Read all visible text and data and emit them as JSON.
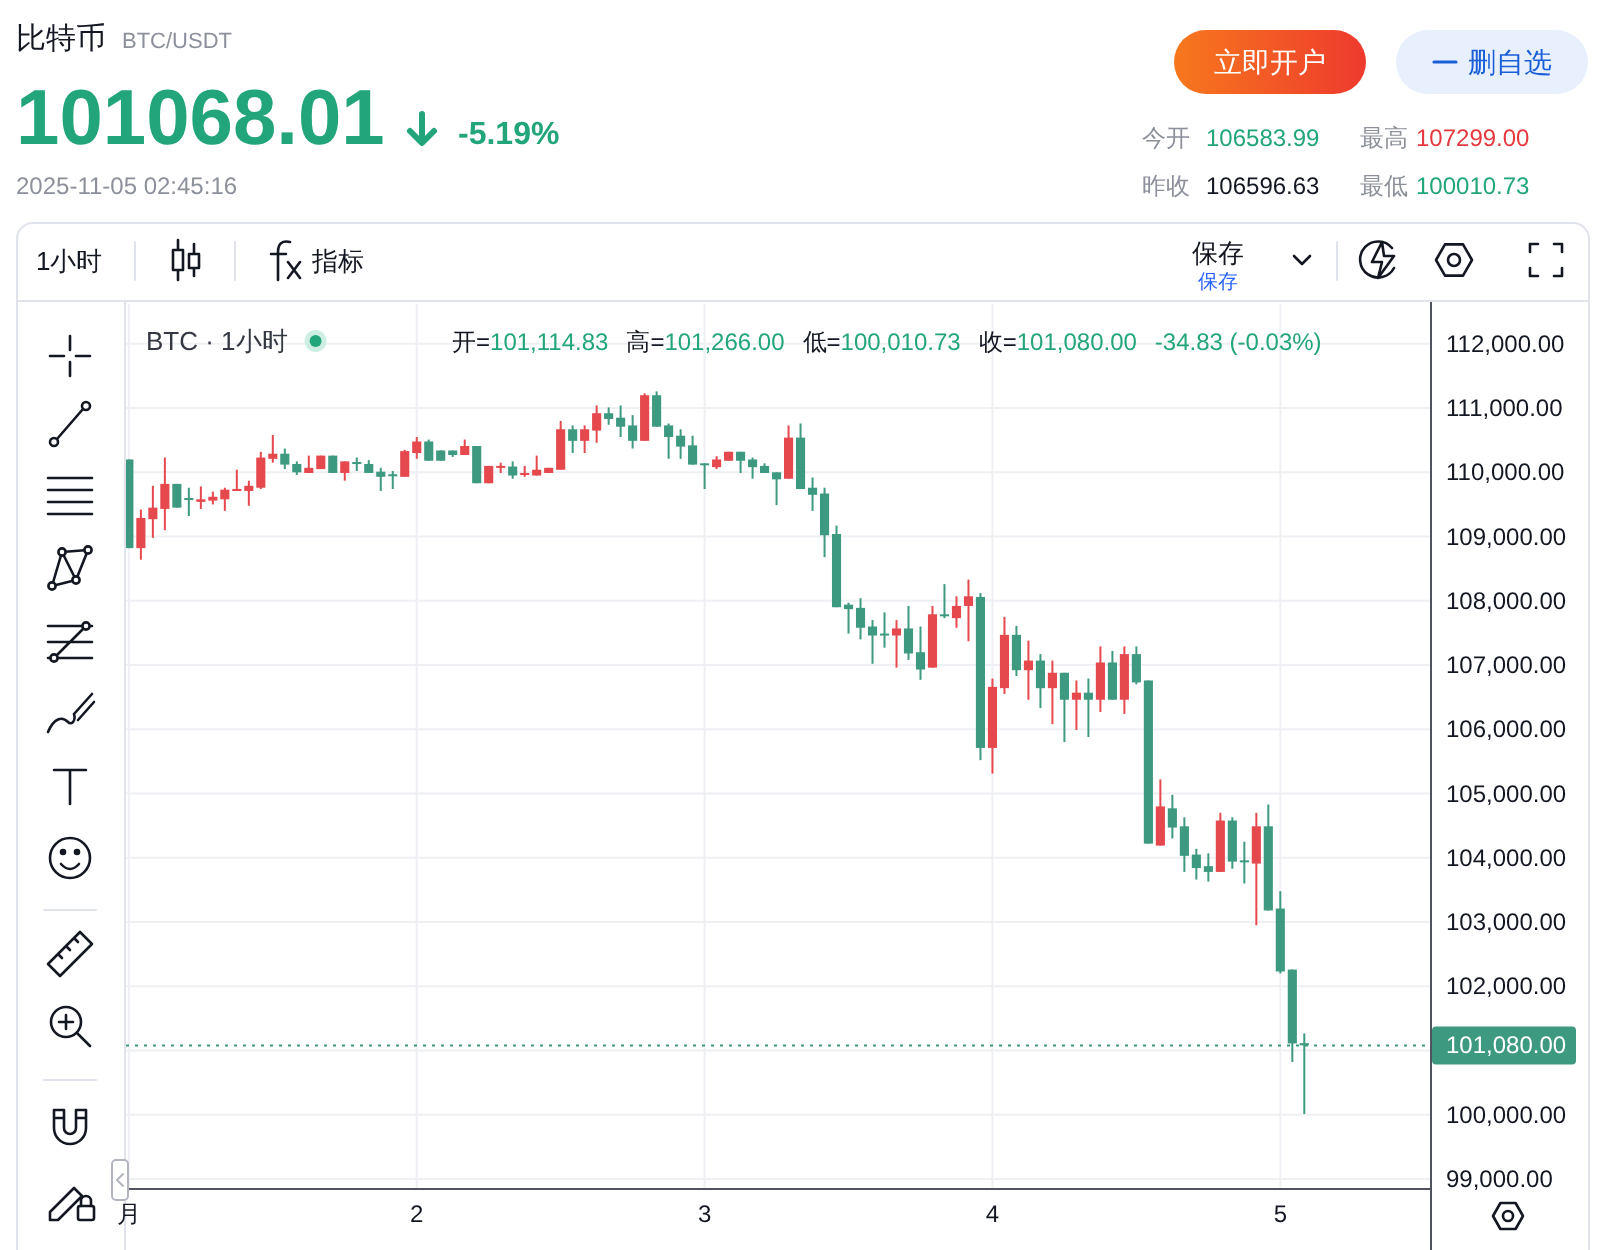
{
  "chart_data": {
    "type": "candlestick",
    "title": "比特币",
    "subtitle": "BTC/USDT",
    "annotations": [
      "101068.01",
      "-5.19%",
      "2025-11-05 02:45:16",
      "今开",
      "106583.99",
      "最高",
      "107299.00",
      "昨收",
      "106596.63",
      "最低",
      "100010.73",
      "立即开户",
      "删自选",
      "1小时",
      "指标",
      "保存",
      "保存",
      "BTC · 1小时",
      "开=101,114.83",
      "高=101,266.00",
      "低=100,010.73",
      "收=101,080.00",
      "-34.83 (-0.03%)"
    ],
    "x": [
      1,
      1.0417,
      1.0833,
      1.125,
      1.1667,
      1.2083,
      1.25,
      1.2917,
      1.3333,
      1.375,
      1.4167,
      1.4583,
      1.5,
      1.5417,
      1.5833,
      1.625,
      1.6667,
      1.7083,
      1.75,
      1.7917,
      1.8333,
      1.875,
      1.9167,
      1.9583,
      2,
      2.0417,
      2.0833,
      2.125,
      2.1667,
      2.2083,
      2.25,
      2.2917,
      2.3333,
      2.375,
      2.4167,
      2.4583,
      2.5,
      2.5417,
      2.5833,
      2.625,
      2.6667,
      2.7083,
      2.75,
      2.7917,
      2.8333,
      2.875,
      2.9167,
      2.9583,
      3,
      3.0417,
      3.0833,
      3.125,
      3.1667,
      3.2083,
      3.25,
      3.2917,
      3.3333,
      3.375,
      3.4167,
      3.4583,
      3.5,
      3.5417,
      3.5833,
      3.625,
      3.6667,
      3.7083,
      3.75,
      3.7917,
      3.8333,
      3.875,
      3.9167,
      3.9583,
      4,
      4.0417,
      4.0833,
      4.125,
      4.1667,
      4.2083,
      4.25,
      4.2917,
      4.3333,
      4.375,
      4.4167,
      4.4583,
      4.5,
      4.5417,
      4.5833,
      4.625,
      4.6667,
      4.7083,
      4.75,
      4.7917,
      4.8333,
      4.875,
      4.9167,
      4.9583,
      5,
      5.0417,
      5.0833
    ],
    "ohlc": [
      [
        110200,
        110200,
        108820,
        108820
      ],
      [
        108820,
        109420,
        108640,
        109290
      ],
      [
        109270,
        109790,
        108980,
        109450
      ],
      [
        109430,
        110230,
        109100,
        109820
      ],
      [
        109820,
        109820,
        109450,
        109450
      ],
      [
        109600,
        109760,
        109320,
        109580
      ],
      [
        109540,
        109780,
        109430,
        109580
      ],
      [
        109560,
        109700,
        109500,
        109620
      ],
      [
        109580,
        109760,
        109400,
        109730
      ],
      [
        109710,
        110040,
        109710,
        109740
      ],
      [
        109710,
        109870,
        109480,
        109790
      ],
      [
        109760,
        110320,
        109740,
        110230
      ],
      [
        110210,
        110580,
        110150,
        110290
      ],
      [
        110290,
        110370,
        110050,
        110120
      ],
      [
        110130,
        110170,
        109960,
        110000
      ],
      [
        109990,
        110260,
        109990,
        110070
      ],
      [
        110050,
        110260,
        110050,
        110260
      ],
      [
        110260,
        110260,
        109990,
        109990
      ],
      [
        109990,
        110170,
        109870,
        110170
      ],
      [
        110160,
        110230,
        110020,
        110130
      ],
      [
        110130,
        110190,
        109990,
        109990
      ],
      [
        110010,
        110070,
        109710,
        109930
      ],
      [
        109970,
        110020,
        109740,
        109950
      ],
      [
        109930,
        110350,
        109930,
        110330
      ],
      [
        110300,
        110550,
        110210,
        110480
      ],
      [
        110480,
        110510,
        110180,
        110180
      ],
      [
        110340,
        110340,
        110180,
        110180
      ],
      [
        110340,
        110340,
        110240,
        110270
      ],
      [
        110270,
        110510,
        110270,
        110410
      ],
      [
        110410,
        110410,
        109830,
        109830
      ],
      [
        109830,
        110100,
        109830,
        110100
      ],
      [
        110080,
        110150,
        109990,
        110100
      ],
      [
        110090,
        110170,
        109900,
        109950
      ],
      [
        109960,
        110100,
        109930,
        109990
      ],
      [
        109950,
        110260,
        109950,
        110040
      ],
      [
        109990,
        110070,
        109990,
        110070
      ],
      [
        110040,
        110800,
        110040,
        110670
      ],
      [
        110670,
        110730,
        110300,
        110490
      ],
      [
        110490,
        110730,
        110300,
        110670
      ],
      [
        110650,
        111040,
        110460,
        110920
      ],
      [
        110920,
        111010,
        110740,
        110830
      ],
      [
        110850,
        111040,
        110550,
        110710
      ],
      [
        110730,
        110890,
        110370,
        110490
      ],
      [
        110490,
        111230,
        110490,
        111200
      ],
      [
        111200,
        111260,
        110710,
        110710
      ],
      [
        110730,
        110760,
        110210,
        110550
      ],
      [
        110570,
        110670,
        110210,
        110400
      ],
      [
        110420,
        110570,
        110120,
        110120
      ],
      [
        110140,
        110140,
        109740,
        110120
      ],
      [
        110080,
        110250,
        110050,
        110200
      ],
      [
        110180,
        110320,
        110180,
        110320
      ],
      [
        110320,
        110320,
        109990,
        110180
      ],
      [
        110200,
        110230,
        109900,
        110080
      ],
      [
        110100,
        110140,
        109990,
        109990
      ],
      [
        110000,
        110000,
        109490,
        109890
      ],
      [
        109900,
        110730,
        109900,
        110540
      ],
      [
        110540,
        110760,
        109740,
        109740
      ],
      [
        109760,
        109920,
        109400,
        109650
      ],
      [
        109670,
        109760,
        108680,
        109020
      ],
      [
        109040,
        109170,
        107900,
        107900
      ],
      [
        107940,
        107970,
        107490,
        107870
      ],
      [
        107890,
        108040,
        107400,
        107580
      ],
      [
        107600,
        107700,
        107020,
        107460
      ],
      [
        107490,
        107820,
        107270,
        107470
      ],
      [
        107460,
        107700,
        106960,
        107570
      ],
      [
        107570,
        107920,
        107080,
        107180
      ],
      [
        107200,
        107600,
        106770,
        106930
      ],
      [
        106960,
        107920,
        106960,
        107790
      ],
      [
        107790,
        108260,
        107730,
        107770
      ],
      [
        107730,
        108070,
        107580,
        107920
      ],
      [
        107920,
        108330,
        107370,
        108070
      ],
      [
        108060,
        108120,
        105520,
        105710
      ],
      [
        105710,
        106790,
        105310,
        106660
      ],
      [
        106640,
        107750,
        106550,
        107470
      ],
      [
        107470,
        107610,
        106830,
        106920
      ],
      [
        106920,
        107380,
        106460,
        107070
      ],
      [
        107070,
        107170,
        106330,
        106640
      ],
      [
        106640,
        107070,
        106080,
        106880
      ],
      [
        106880,
        106880,
        105800,
        106460
      ],
      [
        106460,
        106760,
        105990,
        106570
      ],
      [
        106570,
        106790,
        105880,
        106460
      ],
      [
        106460,
        107290,
        106270,
        107040
      ],
      [
        107040,
        107220,
        106460,
        106460
      ],
      [
        106460,
        107290,
        106240,
        107170
      ],
      [
        107170,
        107290,
        106700,
        106730
      ],
      [
        106760,
        106760,
        104220,
        104220
      ],
      [
        104190,
        105220,
        104190,
        104800
      ],
      [
        104770,
        104980,
        104300,
        104470
      ],
      [
        104490,
        104630,
        103780,
        104030
      ],
      [
        104050,
        104140,
        103660,
        103840
      ],
      [
        103870,
        104070,
        103630,
        103780
      ],
      [
        103780,
        104700,
        103780,
        104580
      ],
      [
        104580,
        104630,
        103830,
        103940
      ],
      [
        103960,
        104250,
        103600,
        103940
      ],
      [
        103910,
        104700,
        102950,
        104490
      ],
      [
        104490,
        104830,
        103180,
        103180
      ],
      [
        103210,
        103480,
        102200,
        102230
      ],
      [
        102260,
        102260,
        100820,
        101110
      ],
      [
        101114.83,
        101266,
        100010.73,
        101080
      ]
    ],
    "colors": [
      "#3d9a80",
      "#e5484d",
      "#e5484d",
      "#e5484d",
      "#3d9a80",
      "#3d9a80",
      "#e5484d",
      "#e5484d",
      "#e5484d",
      "#e5484d",
      "#e5484d",
      "#e5484d",
      "#e5484d",
      "#3d9a80",
      "#3d9a80",
      "#e5484d",
      "#e5484d",
      "#3d9a80",
      "#e5484d",
      "#3d9a80",
      "#3d9a80",
      "#3d9a80",
      "#3d9a80",
      "#e5484d",
      "#e5484d",
      "#3d9a80",
      "#3d9a80",
      "#3d9a80",
      "#e5484d",
      "#3d9a80",
      "#e5484d",
      "#e5484d",
      "#3d9a80",
      "#e5484d",
      "#e5484d",
      "#e5484d",
      "#e5484d",
      "#3d9a80",
      "#e5484d",
      "#e5484d",
      "#3d9a80",
      "#3d9a80",
      "#3d9a80",
      "#e5484d",
      "#3d9a80",
      "#3d9a80",
      "#3d9a80",
      "#3d9a80",
      "#3d9a80",
      "#e5484d",
      "#e5484d",
      "#3d9a80",
      "#3d9a80",
      "#3d9a80",
      "#3d9a80",
      "#e5484d",
      "#3d9a80",
      "#3d9a80",
      "#3d9a80",
      "#3d9a80",
      "#3d9a80",
      "#3d9a80",
      "#3d9a80",
      "#3d9a80",
      "#e5484d",
      "#3d9a80",
      "#3d9a80",
      "#e5484d",
      "#3d9a80",
      "#e5484d",
      "#e5484d",
      "#3d9a80",
      "#e5484d",
      "#e5484d",
      "#3d9a80",
      "#e5484d",
      "#3d9a80",
      "#e5484d",
      "#3d9a80",
      "#e5484d",
      "#3d9a80",
      "#e5484d",
      "#3d9a80",
      "#e5484d",
      "#3d9a80",
      "#3d9a80",
      "#e5484d",
      "#3d9a80",
      "#3d9a80",
      "#3d9a80",
      "#3d9a80",
      "#e5484d",
      "#3d9a80",
      "#3d9a80",
      "#e5484d",
      "#3d9a80",
      "#3d9a80",
      "#3d9a80",
      "#3d9a80"
    ],
    "xlim": [
      0.99,
      5.52
    ],
    "xticks": [
      {
        "value": 1,
        "label": "月"
      },
      2,
      3,
      4,
      5
    ],
    "ylim": [
      98860,
      112620
    ],
    "yticks": [
      {
        "value": 112000,
        "label": "112,000.00"
      },
      {
        "value": 111000,
        "label": "111,000.00"
      },
      {
        "value": 110000,
        "label": "110,000.00"
      },
      {
        "value": 109000,
        "label": "109,000.00"
      },
      {
        "value": 108000,
        "label": "108,000.00"
      },
      {
        "value": 107000,
        "label": "107,000.00"
      },
      {
        "value": 106000,
        "label": "106,000.00"
      },
      {
        "value": 105000,
        "label": "105,000.00"
      },
      {
        "value": 104000,
        "label": "104,000.00"
      },
      {
        "value": 103000,
        "label": "103,000.00"
      },
      {
        "value": 102000,
        "label": "102,000.00"
      },
      {
        "value": 101000,
        "label": null
      },
      {
        "value": 100000,
        "label": "100,000.00"
      },
      {
        "value": 99000,
        "label": "99,000.00"
      }
    ],
    "grid": true,
    "ref_lines": [
      {
        "axis": "y",
        "value": 101080,
        "label": "101,080.00",
        "color": "#3d9a80",
        "line_style": "dotted"
      }
    ]
  }
}
